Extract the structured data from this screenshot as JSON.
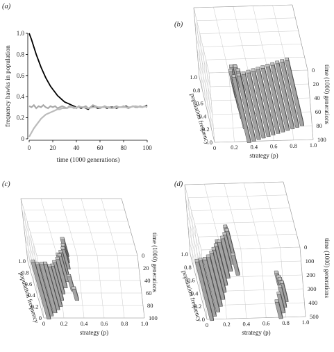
{
  "panels": {
    "a": {
      "label": "(a)"
    },
    "b": {
      "label": "(b)"
    },
    "c": {
      "label": "(c)"
    },
    "d": {
      "label": "(d)"
    }
  },
  "chart_data": [
    {
      "panel": "a",
      "type": "line",
      "ylabel": "frequency hawks in population",
      "xlabel": "time (1000 generations)",
      "xlim": [
        0,
        100
      ],
      "ylim": [
        0,
        1
      ],
      "x_ticks": [
        "0",
        "20",
        "40",
        "60",
        "80",
        "100"
      ],
      "y_ticks": [
        "0",
        "0.2",
        "0.4",
        "0.6",
        "0.8",
        "1.0"
      ],
      "grid": false,
      "series": [
        {
          "color": "#000000",
          "x": [
            0,
            2,
            4,
            6,
            8,
            10,
            12,
            14,
            16,
            18,
            20,
            22,
            24,
            26,
            28,
            30,
            32,
            34,
            36,
            38,
            40,
            42,
            44,
            46,
            48,
            50,
            52,
            54,
            56,
            58,
            60,
            62,
            64,
            66,
            68,
            70,
            72,
            74,
            76,
            78,
            80,
            82,
            84,
            86,
            88,
            90,
            92,
            94,
            96,
            98,
            100
          ],
          "values": [
            1.0,
            0.94,
            0.87,
            0.8,
            0.74,
            0.68,
            0.63,
            0.58,
            0.54,
            0.5,
            0.47,
            0.44,
            0.41,
            0.39,
            0.37,
            0.35,
            0.34,
            0.33,
            0.32,
            0.31,
            0.3,
            0.3,
            0.29,
            0.3,
            0.29,
            0.28,
            0.3,
            0.31,
            0.3,
            0.29,
            0.29,
            0.3,
            0.3,
            0.29,
            0.3,
            0.3,
            0.3,
            0.29,
            0.3,
            0.3,
            0.3,
            0.31,
            0.3,
            0.3,
            0.31,
            0.3,
            0.3,
            0.31,
            0.3,
            0.31,
            0.32
          ]
        },
        {
          "color": "#aaaaaa",
          "x": [
            0,
            2,
            4,
            6,
            8,
            10,
            12,
            14,
            16,
            18,
            20,
            22,
            24,
            26,
            28,
            30,
            32,
            34,
            36,
            38,
            40,
            42,
            44,
            46,
            48,
            50,
            52,
            54,
            56,
            58,
            60,
            62,
            64,
            66,
            68,
            70,
            72,
            74,
            76,
            78,
            80,
            82,
            84,
            86,
            88,
            90,
            92,
            94,
            96,
            98,
            100
          ],
          "values": [
            0.31,
            0.3,
            0.32,
            0.29,
            0.31,
            0.3,
            0.32,
            0.3,
            0.29,
            0.31,
            0.3,
            0.31,
            0.29,
            0.3,
            0.31,
            0.3,
            0.29,
            0.31,
            0.3,
            0.3,
            0.29,
            0.31,
            0.3,
            0.3,
            0.31,
            0.29,
            0.3,
            0.32,
            0.31,
            0.3,
            0.29,
            0.3,
            0.31,
            0.3,
            0.3,
            0.29,
            0.3,
            0.31,
            0.3,
            0.3,
            0.31,
            0.3,
            0.29,
            0.3,
            0.31,
            0.3,
            0.3,
            0.31,
            0.3,
            0.31,
            0.3
          ]
        },
        {
          "color": "#bbbbbb",
          "x": [
            0,
            2,
            4,
            6,
            8,
            10,
            12,
            14,
            16,
            18,
            20,
            22,
            24,
            26,
            28,
            30,
            32,
            34,
            36,
            38,
            40,
            45,
            50,
            55,
            60,
            65,
            70,
            75,
            80,
            85,
            90,
            95,
            100
          ],
          "values": [
            0.02,
            0.06,
            0.1,
            0.13,
            0.16,
            0.19,
            0.21,
            0.23,
            0.24,
            0.25,
            0.26,
            0.27,
            0.28,
            0.28,
            0.29,
            0.29,
            0.29,
            0.3,
            0.3,
            0.29,
            0.3,
            0.3,
            0.29,
            0.3,
            0.3,
            0.3,
            0.29,
            0.3,
            0.3,
            0.3,
            0.31,
            0.3,
            0.31
          ]
        }
      ]
    },
    {
      "panel": "b",
      "type": "bar",
      "ylabel": "population frequency",
      "xlabel": "strategy (p)",
      "zlabel": "time (1000) generations",
      "x_ticks": [
        "0",
        "0.2",
        "0.4",
        "0.6",
        "0.8",
        "1.0"
      ],
      "y_ticks": [
        "0",
        "0.2",
        "0.4",
        "0.6",
        "0.8",
        "1.0"
      ],
      "z_ticks": [
        "0",
        "20",
        "40",
        "60",
        "80",
        "100"
      ],
      "xlim": [
        0,
        1
      ],
      "ylim": [
        0,
        1
      ],
      "zlim": [
        0,
        100
      ],
      "bars": [
        {
          "strategy": 0.35,
          "time": 0,
          "freq": 1.0
        },
        {
          "strategy": 0.4,
          "time": 2,
          "freq": 1.0
        },
        {
          "strategy": 0.45,
          "time": 4,
          "freq": 1.0
        },
        {
          "strategy": 0.5,
          "time": 6,
          "freq": 1.0
        },
        {
          "strategy": 0.55,
          "time": 8,
          "freq": 1.0
        },
        {
          "strategy": 0.6,
          "time": 10,
          "freq": 1.0
        },
        {
          "strategy": 0.65,
          "time": 12,
          "freq": 1.0
        },
        {
          "strategy": 0.7,
          "time": 14,
          "freq": 1.0
        },
        {
          "strategy": 0.75,
          "time": 16,
          "freq": 1.0
        },
        {
          "strategy": 0.8,
          "time": 18,
          "freq": 1.0
        },
        {
          "strategy": 0.85,
          "time": 20,
          "freq": 1.0
        },
        {
          "strategy": 0.9,
          "time": 22,
          "freq": 1.0
        },
        {
          "strategy": 0.32,
          "time": 20,
          "freq": 0.7
        },
        {
          "strategy": 0.3,
          "time": 35,
          "freq": 0.5
        },
        {
          "strategy": 0.28,
          "time": 50,
          "freq": 0.45
        },
        {
          "strategy": 0.26,
          "time": 65,
          "freq": 0.4
        },
        {
          "strategy": 0.3,
          "time": 80,
          "freq": 0.3
        },
        {
          "strategy": 0.28,
          "time": 95,
          "freq": 0.15
        },
        {
          "strategy": 0.25,
          "time": 90,
          "freq": 0.2
        },
        {
          "strategy": 0.33,
          "time": 70,
          "freq": 0.35
        },
        {
          "strategy": 0.35,
          "time": 50,
          "freq": 0.3
        },
        {
          "strategy": 0.3,
          "time": 40,
          "freq": 0.55
        }
      ]
    },
    {
      "panel": "c",
      "type": "bar",
      "ylabel": "population frequency",
      "xlabel": "strategy (p)",
      "zlabel": "time (1000) generations",
      "x_ticks": [
        "0",
        "0.2",
        "0.4",
        "0.6",
        "0.8",
        "1.0"
      ],
      "y_ticks": [
        "0",
        "0.2",
        "0.4",
        "0.6",
        "0.8",
        "1.0"
      ],
      "z_ticks": [
        "0",
        "20",
        "40",
        "60",
        "80",
        "100"
      ],
      "xlim": [
        0,
        1
      ],
      "ylim": [
        0,
        1
      ],
      "zlim": [
        0,
        100
      ],
      "bars": [
        {
          "strategy": 0.05,
          "time": 0,
          "freq": 1.0
        },
        {
          "strategy": 0.08,
          "time": 5,
          "freq": 0.9
        },
        {
          "strategy": 0.12,
          "time": 10,
          "freq": 0.85
        },
        {
          "strategy": 0.15,
          "time": 15,
          "freq": 0.8
        },
        {
          "strategy": 0.18,
          "time": 20,
          "freq": 0.7
        },
        {
          "strategy": 0.2,
          "time": 30,
          "freq": 0.6
        },
        {
          "strategy": 0.22,
          "time": 40,
          "freq": 0.55
        },
        {
          "strategy": 0.25,
          "time": 50,
          "freq": 0.5
        },
        {
          "strategy": 0.27,
          "time": 60,
          "freq": 0.45
        },
        {
          "strategy": 0.28,
          "time": 70,
          "freq": 0.4
        },
        {
          "strategy": 0.3,
          "time": 80,
          "freq": 0.35
        },
        {
          "strategy": 0.3,
          "time": 90,
          "freq": 0.3
        },
        {
          "strategy": 0.3,
          "time": 100,
          "freq": 0.3
        },
        {
          "strategy": 0.32,
          "time": 45,
          "freq": 0.25
        },
        {
          "strategy": 0.24,
          "time": 75,
          "freq": 0.3
        },
        {
          "strategy": 0.35,
          "time": 30,
          "freq": 0.2
        }
      ]
    },
    {
      "panel": "d",
      "type": "bar",
      "ylabel": "population frequency",
      "xlabel": "strategy (p)",
      "zlabel": "time (1000) generations",
      "x_ticks": [
        "0",
        "0.2",
        "0.4",
        "0.6",
        "0.8",
        "1.0"
      ],
      "y_ticks": [
        "0",
        "0.2",
        "0.4",
        "0.6",
        "0.8",
        "1.0"
      ],
      "z_ticks": [
        "0",
        "100",
        "200",
        "300",
        "400",
        "500"
      ],
      "xlim": [
        0,
        1
      ],
      "ylim": [
        0,
        1
      ],
      "zlim": [
        0,
        500
      ],
      "bars": [
        {
          "strategy": 0.05,
          "time": 0,
          "freq": 0.9
        },
        {
          "strategy": 0.08,
          "time": 30,
          "freq": 0.85
        },
        {
          "strategy": 0.12,
          "time": 60,
          "freq": 0.8
        },
        {
          "strategy": 0.15,
          "time": 100,
          "freq": 0.75
        },
        {
          "strategy": 0.18,
          "time": 150,
          "freq": 0.7
        },
        {
          "strategy": 0.2,
          "time": 200,
          "freq": 0.65
        },
        {
          "strategy": 0.22,
          "time": 250,
          "freq": 0.6
        },
        {
          "strategy": 0.25,
          "time": 300,
          "freq": 0.55
        },
        {
          "strategy": 0.28,
          "time": 350,
          "freq": 0.5
        },
        {
          "strategy": 0.3,
          "time": 400,
          "freq": 0.45
        },
        {
          "strategy": 0.32,
          "time": 450,
          "freq": 0.4
        },
        {
          "strategy": 0.3,
          "time": 500,
          "freq": 0.35
        },
        {
          "strategy": 0.2,
          "time": 420,
          "freq": 0.3
        },
        {
          "strategy": 0.35,
          "time": 320,
          "freq": 0.3
        },
        {
          "strategy": 0.75,
          "time": 0,
          "freq": 0.25
        },
        {
          "strategy": 0.78,
          "time": 40,
          "freq": 0.28
        },
        {
          "strategy": 0.8,
          "time": 80,
          "freq": 0.3
        },
        {
          "strategy": 0.82,
          "time": 120,
          "freq": 0.28
        },
        {
          "strategy": 0.8,
          "time": 160,
          "freq": 0.25
        },
        {
          "strategy": 0.78,
          "time": 200,
          "freq": 0.2
        },
        {
          "strategy": 0.76,
          "time": 240,
          "freq": 0.18
        }
      ]
    }
  ]
}
